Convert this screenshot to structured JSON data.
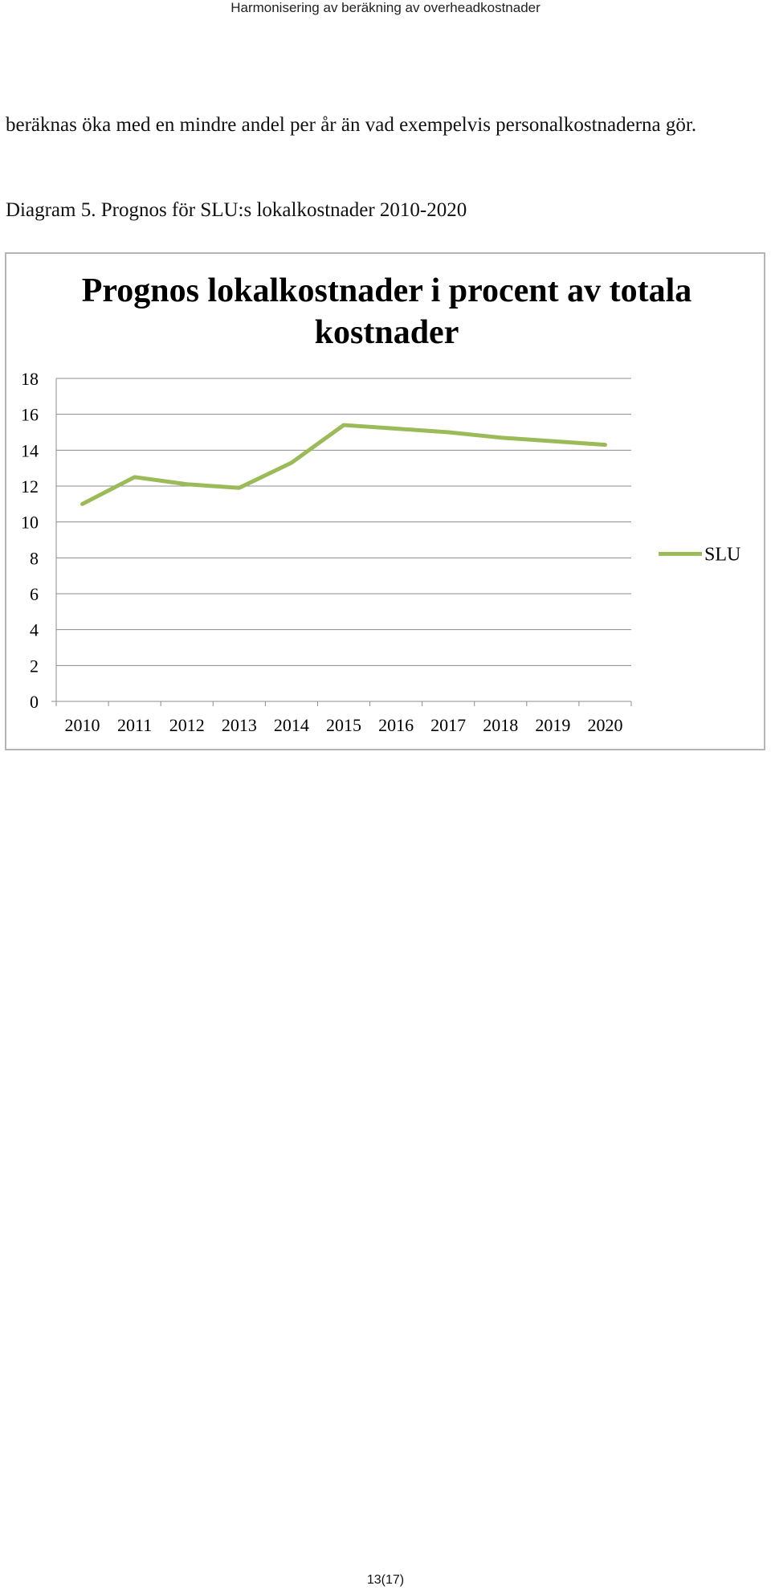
{
  "header": {
    "title": "Harmonisering av beräkning av overheadkostnader"
  },
  "body": {
    "paragraph": "beräknas öka med en mindre andel per år än vad exempelvis personalkostnaderna gör.",
    "caption": "Diagram 5. Prognos för SLU:s lokalkostnader 2010-2020"
  },
  "chart_data": {
    "type": "line",
    "title": "Prognos lokalkostnader i procent av totala kostnader",
    "categories": [
      "2010",
      "2011",
      "2012",
      "2013",
      "2014",
      "2015",
      "2016",
      "2017",
      "2018",
      "2019",
      "2020"
    ],
    "series": [
      {
        "name": "SLU",
        "color": "#9bbb59",
        "values": [
          11.0,
          12.5,
          12.1,
          11.9,
          13.3,
          15.4,
          15.2,
          15.0,
          14.7,
          14.5,
          14.3
        ]
      }
    ],
    "ylim": [
      0,
      18
    ],
    "yticks": [
      0,
      2,
      4,
      6,
      8,
      10,
      12,
      14,
      16,
      18
    ],
    "xlabel": "",
    "ylabel": "",
    "grid": true,
    "legend": "right"
  },
  "footer": {
    "page": "13(17)"
  }
}
